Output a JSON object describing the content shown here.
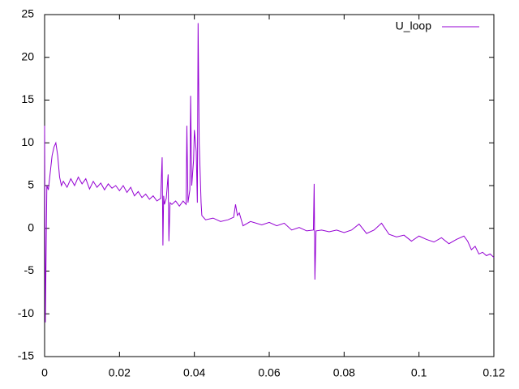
{
  "chart_data": {
    "type": "line",
    "xlim": [
      0,
      0.12
    ],
    "xticks": [
      0,
      0.02,
      0.04,
      0.06,
      0.08,
      0.1,
      0.12
    ],
    "ylim": [
      -15,
      25
    ],
    "yticks": [
      -15,
      -10,
      -5,
      0,
      5,
      10,
      15,
      20,
      25
    ],
    "grid": false,
    "legend": "top-right",
    "x": [
      0,
      0.0002,
      0.0004,
      0.0006,
      0.001,
      0.0015,
      0.002,
      0.0025,
      0.003,
      0.0035,
      0.004,
      0.0045,
      0.005,
      0.006,
      0.007,
      0.008,
      0.009,
      0.01,
      0.011,
      0.012,
      0.013,
      0.014,
      0.015,
      0.016,
      0.017,
      0.018,
      0.019,
      0.02,
      0.021,
      0.022,
      0.023,
      0.024,
      0.025,
      0.026,
      0.027,
      0.028,
      0.029,
      0.03,
      0.031,
      0.0314,
      0.0316,
      0.0318,
      0.032,
      0.0325,
      0.033,
      0.0332,
      0.0335,
      0.034,
      0.035,
      0.036,
      0.037,
      0.0378,
      0.038,
      0.0383,
      0.0388,
      0.039,
      0.0393,
      0.0398,
      0.04,
      0.0405,
      0.0408,
      0.041,
      0.0413,
      0.0418,
      0.042,
      0.043,
      0.045,
      0.047,
      0.049,
      0.0505,
      0.051,
      0.0515,
      0.052,
      0.053,
      0.055,
      0.058,
      0.06,
      0.062,
      0.064,
      0.066,
      0.068,
      0.07,
      0.0718,
      0.072,
      0.0722,
      0.0725,
      0.074,
      0.076,
      0.078,
      0.08,
      0.082,
      0.084,
      0.086,
      0.088,
      0.09,
      0.092,
      0.094,
      0.096,
      0.098,
      0.1,
      0.102,
      0.104,
      0.106,
      0.108,
      0.11,
      0.112,
      0.113,
      0.114,
      0.115,
      0.116,
      0.117,
      0.118,
      0.119,
      0.12
    ],
    "series": [
      {
        "name": "U_loop",
        "color": "#9400d3",
        "values": [
          12,
          -11,
          -3,
          5,
          4.5,
          6.5,
          8.5,
          9.5,
          10,
          8.5,
          6,
          5,
          5.5,
          4.8,
          5.8,
          5,
          6,
          5.2,
          5.8,
          4.6,
          5.5,
          4.8,
          5.3,
          4.5,
          5.2,
          4.7,
          5,
          4.4,
          5,
          4.2,
          4.8,
          3.8,
          4.3,
          3.6,
          4,
          3.4,
          3.8,
          3.2,
          3.5,
          8.3,
          -2,
          3.8,
          2.8,
          3.5,
          6.3,
          -1.5,
          3,
          2.8,
          3.2,
          2.6,
          3.2,
          2.8,
          12,
          3,
          4.5,
          15.5,
          5,
          8,
          11.5,
          9,
          3,
          24,
          10,
          3,
          1.5,
          1,
          1.2,
          0.8,
          1,
          1.3,
          2.8,
          1.5,
          1.8,
          0.3,
          0.8,
          0.4,
          0.7,
          0.3,
          0.6,
          -0.2,
          0.1,
          -0.3,
          -0.2,
          5.2,
          -6,
          -0.3,
          -0.2,
          -0.4,
          -0.2,
          -0.5,
          -0.2,
          0.5,
          -0.6,
          -0.2,
          0.6,
          -0.7,
          -1,
          -0.8,
          -1.5,
          -0.9,
          -1.3,
          -1.6,
          -1.1,
          -1.8,
          -1.3,
          -0.9,
          -1.5,
          -2.5,
          -2.1,
          -3,
          -2.8,
          -3.2,
          -3,
          -3.4
        ]
      }
    ]
  }
}
